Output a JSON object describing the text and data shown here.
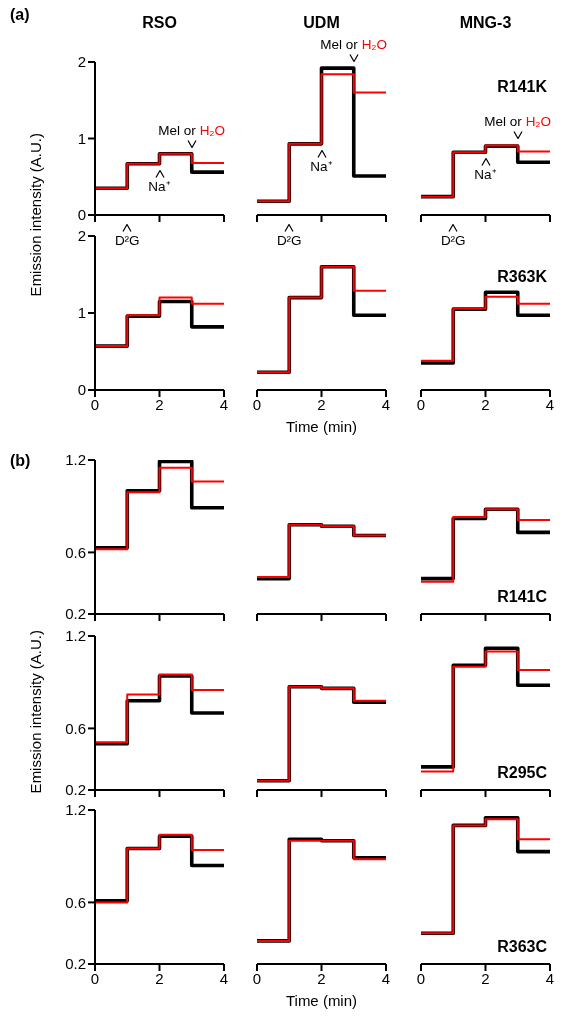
{
  "chart_data": [
    {
      "type": "step",
      "title": "RSO",
      "ylabel": "Emission intensity (A.U.)",
      "x": [
        0,
        1,
        2,
        3,
        4
      ],
      "xlim": [
        0,
        4
      ],
      "xticks": [
        0,
        2,
        4
      ],
      "ylim": [
        0,
        2
      ],
      "yticks": [
        0,
        1,
        2
      ],
      "tick_labels": "y",
      "series": [
        {
          "color": "#000000",
          "values": [
            0.35,
            0.67,
            0.8,
            0.56,
            0.56
          ]
        },
        {
          "color": "#ff0000",
          "values": [
            0.35,
            0.67,
            0.8,
            0.68,
            0.68
          ]
        }
      ],
      "annotations": [
        "(a)",
        "D²G",
        "Na⁺",
        "Mel or H₂O"
      ]
    },
    {
      "type": "step",
      "title": "UDM",
      "x": [
        0,
        1,
        2,
        3,
        4
      ],
      "xlim": [
        0,
        4
      ],
      "xticks": [
        0,
        2,
        4
      ],
      "ylim": [
        0,
        2
      ],
      "tick_labels": false,
      "series": [
        {
          "color": "#000000",
          "values": [
            0.18,
            0.93,
            1.92,
            0.51,
            0.51
          ]
        },
        {
          "color": "#ff0000",
          "values": [
            0.18,
            0.93,
            1.84,
            1.6,
            1.6
          ]
        }
      ],
      "annotations": [
        "D²G",
        "Na⁺",
        "Mel or H₂O"
      ]
    },
    {
      "type": "step",
      "title": "MNG-3",
      "x": [
        0,
        1,
        2,
        3,
        4
      ],
      "xlim": [
        0,
        4
      ],
      "xticks": [
        0,
        2,
        4
      ],
      "ylim": [
        0,
        2
      ],
      "tick_labels": false,
      "series": [
        {
          "color": "#000000",
          "values": [
            0.24,
            0.82,
            0.9,
            0.69,
            0.69
          ]
        },
        {
          "color": "#ff0000",
          "values": [
            0.24,
            0.82,
            0.91,
            0.83,
            0.83
          ]
        }
      ],
      "annotations": [
        "R141K",
        "D²G",
        "Na⁺",
        "Mel or H₂O"
      ]
    },
    {
      "type": "step",
      "x": [
        0,
        1,
        2,
        3,
        4
      ],
      "xlim": [
        0,
        4
      ],
      "xticks": [
        0,
        2,
        4
      ],
      "ylim": [
        0,
        2
      ],
      "yticks": [
        0,
        1,
        2
      ],
      "series": [
        {
          "color": "#000000",
          "values": [
            0.57,
            0.96,
            1.15,
            0.82,
            0.82
          ]
        },
        {
          "color": "#ff0000",
          "values": [
            0.57,
            0.97,
            1.2,
            1.12,
            1.12
          ]
        }
      ]
    },
    {
      "type": "step",
      "xlabel": "Time (min)",
      "x": [
        0,
        1,
        2,
        3,
        4
      ],
      "xlim": [
        0,
        4
      ],
      "xticks": [
        0,
        2,
        4
      ],
      "ylim": [
        0,
        2
      ],
      "tick_labels": "x",
      "series": [
        {
          "color": "#000000",
          "values": [
            0.23,
            1.2,
            1.6,
            0.97,
            0.97
          ]
        },
        {
          "color": "#ff0000",
          "values": [
            0.23,
            1.2,
            1.6,
            1.29,
            1.29
          ]
        }
      ]
    },
    {
      "type": "step",
      "x": [
        0,
        1,
        2,
        3,
        4
      ],
      "xlim": [
        0,
        4
      ],
      "xticks": [
        0,
        2,
        4
      ],
      "ylim": [
        0,
        2
      ],
      "tick_labels": "x",
      "series": [
        {
          "color": "#000000",
          "values": [
            0.35,
            1.05,
            1.27,
            0.97,
            0.97
          ]
        },
        {
          "color": "#ff0000",
          "values": [
            0.38,
            1.06,
            1.21,
            1.12,
            1.12
          ]
        }
      ],
      "annotations": [
        "R363K"
      ]
    },
    {
      "type": "step",
      "x": [
        0,
        1,
        2,
        3,
        4
      ],
      "xlim": [
        0,
        4
      ],
      "xticks": [
        0,
        2,
        4
      ],
      "ylim": [
        0.2,
        1.2
      ],
      "yticks": [
        0.2,
        0.6,
        1.2
      ],
      "tick_labels": "y",
      "series": [
        {
          "color": "#000000",
          "values": [
            0.63,
            1.0,
            1.19,
            0.89,
            0.89
          ]
        },
        {
          "color": "#ff0000",
          "values": [
            0.62,
            0.99,
            1.15,
            1.06,
            1.06
          ]
        }
      ],
      "annotations": [
        "(b)"
      ]
    },
    {
      "type": "step",
      "x": [
        0,
        1,
        2,
        3,
        4
      ],
      "xlim": [
        0,
        4
      ],
      "xticks": [
        0,
        2,
        4
      ],
      "ylim": [
        0.2,
        1.2
      ],
      "tick_labels": false,
      "series": [
        {
          "color": "#000000",
          "values": [
            0.43,
            0.78,
            0.77,
            0.71,
            0.71
          ]
        },
        {
          "color": "#ff0000",
          "values": [
            0.44,
            0.78,
            0.77,
            0.71,
            0.71
          ]
        }
      ]
    },
    {
      "type": "step",
      "x": [
        0,
        1,
        2,
        3,
        4
      ],
      "xlim": [
        0,
        4
      ],
      "xticks": [
        0,
        2,
        4
      ],
      "ylim": [
        0.2,
        1.2
      ],
      "tick_labels": false,
      "series": [
        {
          "color": "#000000",
          "values": [
            0.43,
            0.82,
            0.88,
            0.73,
            0.73
          ]
        },
        {
          "color": "#ff0000",
          "values": [
            0.41,
            0.83,
            0.88,
            0.81,
            0.81
          ]
        }
      ],
      "annotations": [
        "R141C"
      ]
    },
    {
      "type": "step",
      "ylabel": "Emission intensity (A.U.)",
      "x": [
        0,
        1,
        2,
        3,
        4
      ],
      "xlim": [
        0,
        4
      ],
      "xticks": [
        0,
        2,
        4
      ],
      "ylim": [
        0.2,
        1.2
      ],
      "yticks": [
        0.2,
        0.6,
        1.2
      ],
      "tick_labels": "y",
      "series": [
        {
          "color": "#000000",
          "values": [
            0.5,
            0.78,
            0.94,
            0.7,
            0.7
          ]
        },
        {
          "color": "#ff0000",
          "values": [
            0.51,
            0.82,
            0.95,
            0.85,
            0.85
          ]
        }
      ]
    },
    {
      "type": "step",
      "x": [
        0,
        1,
        2,
        3,
        4
      ],
      "xlim": [
        0,
        4
      ],
      "xticks": [
        0,
        2,
        4
      ],
      "ylim": [
        0.2,
        1.2
      ],
      "tick_labels": false,
      "series": [
        {
          "color": "#000000",
          "values": [
            0.26,
            0.87,
            0.86,
            0.77,
            0.77
          ]
        },
        {
          "color": "#ff0000",
          "values": [
            0.26,
            0.87,
            0.86,
            0.78,
            0.78
          ]
        }
      ]
    },
    {
      "type": "step",
      "x": [
        0,
        1,
        2,
        3,
        4
      ],
      "xlim": [
        0,
        4
      ],
      "xticks": [
        0,
        2,
        4
      ],
      "ylim": [
        0.2,
        1.2
      ],
      "tick_labels": false,
      "series": [
        {
          "color": "#000000",
          "values": [
            0.35,
            1.01,
            1.12,
            0.88,
            0.88
          ]
        },
        {
          "color": "#ff0000",
          "values": [
            0.32,
            1.0,
            1.1,
            0.98,
            0.98
          ]
        }
      ],
      "annotations": [
        "R295C"
      ]
    },
    {
      "type": "step",
      "x": [
        0,
        1,
        2,
        3,
        4
      ],
      "xlim": [
        0,
        4
      ],
      "xticks": [
        0,
        2,
        4
      ],
      "ylim": [
        0.2,
        1.2
      ],
      "yticks": [
        0.2,
        0.6,
        1.2
      ],
      "series": [
        {
          "color": "#000000",
          "values": [
            0.61,
            0.95,
            1.03,
            0.84,
            0.84
          ]
        },
        {
          "color": "#ff0000",
          "values": [
            0.6,
            0.95,
            1.04,
            0.94,
            0.94
          ]
        }
      ]
    },
    {
      "type": "step",
      "xlabel": "Time (min)",
      "x": [
        0,
        1,
        2,
        3,
        4
      ],
      "xlim": [
        0,
        4
      ],
      "xticks": [
        0,
        2,
        4
      ],
      "ylim": [
        0.2,
        1.2
      ],
      "tick_labels": "x",
      "series": [
        {
          "color": "#000000",
          "values": [
            0.35,
            1.01,
            1.0,
            0.89,
            0.89
          ]
        },
        {
          "color": "#ff0000",
          "values": [
            0.35,
            1.0,
            1.0,
            0.88,
            0.88
          ]
        }
      ]
    },
    {
      "type": "step",
      "x": [
        0,
        1,
        2,
        3,
        4
      ],
      "xlim": [
        0,
        4
      ],
      "xticks": [
        0,
        2,
        4
      ],
      "ylim": [
        0.2,
        1.2
      ],
      "tick_labels": "x",
      "series": [
        {
          "color": "#000000",
          "values": [
            0.4,
            1.1,
            1.15,
            0.93,
            0.93
          ]
        },
        {
          "color": "#ff0000",
          "values": [
            0.4,
            1.1,
            1.14,
            1.01,
            1.01
          ]
        }
      ],
      "annotations": [
        "R363C"
      ]
    }
  ]
}
